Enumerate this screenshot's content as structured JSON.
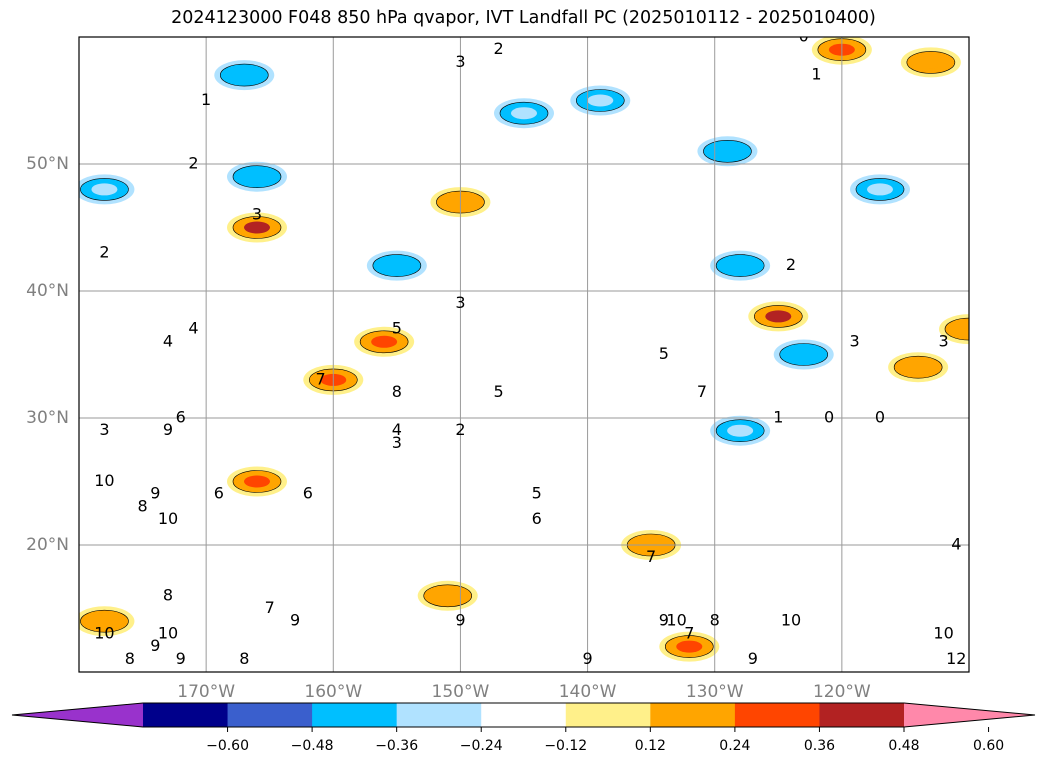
{
  "title": "2024123000 F048 850 hPa qvapor, IVT Landfall PC (2025010112 - 2025010400)",
  "chart_data": {
    "type": "contour-map",
    "title": "2024123000 F048 850 hPa qvapor, IVT Landfall PC (2025010112 - 2025010400)",
    "lon_range": [
      -180,
      -110
    ],
    "lat_range": [
      10,
      60
    ],
    "grid": true,
    "lat_ticks": [
      {
        "lat": 50,
        "label": "50°N"
      },
      {
        "lat": 40,
        "label": "40°N"
      },
      {
        "lat": 30,
        "label": "30°N"
      },
      {
        "lat": 20,
        "label": "20°N"
      }
    ],
    "lon_ticks": [
      {
        "lon": -170,
        "label": "170°W"
      },
      {
        "lon": -160,
        "label": "160°W"
      },
      {
        "lon": -150,
        "label": "150°W"
      },
      {
        "lon": -140,
        "label": "140°W"
      },
      {
        "lon": -130,
        "label": "130°W"
      },
      {
        "lon": -120,
        "label": "120°W"
      }
    ],
    "colorbar": {
      "orientation": "horizontal",
      "extend": "both",
      "levels": [
        -0.72,
        -0.6,
        -0.48,
        -0.36,
        -0.24,
        -0.12,
        0.12,
        0.24,
        0.36,
        0.48,
        0.6,
        0.72
      ],
      "colors": [
        "#9932cc",
        "#00008b",
        "#3a5fcd",
        "#00bfff",
        "#b0e2ff",
        "#ffffff",
        "#fff08a",
        "#ffa500",
        "#ff4500",
        "#b22222",
        "#ff88aa"
      ],
      "tick_labels": [
        "−0.60",
        "−0.48",
        "−0.36",
        "−0.24",
        "−0.12",
        "0.12",
        "0.24",
        "0.36",
        "0.48",
        "0.60"
      ]
    },
    "contour_labels": [
      {
        "text": "2",
        "lon": -147,
        "lat": 59
      },
      {
        "text": "3",
        "lon": -150,
        "lat": 58
      },
      {
        "text": "1",
        "lon": -170,
        "lat": 55
      },
      {
        "text": "2",
        "lon": -171,
        "lat": 50
      },
      {
        "text": "3",
        "lon": -166,
        "lat": 46
      },
      {
        "text": "2",
        "lon": -178,
        "lat": 43
      },
      {
        "text": "4",
        "lon": -173,
        "lat": 36
      },
      {
        "text": "3",
        "lon": -178,
        "lat": 29
      },
      {
        "text": "6",
        "lon": -172,
        "lat": 30
      },
      {
        "text": "9",
        "lon": -173,
        "lat": 29
      },
      {
        "text": "4",
        "lon": -171,
        "lat": 37
      },
      {
        "text": "7",
        "lon": -161,
        "lat": 33
      },
      {
        "text": "8",
        "lon": -155,
        "lat": 32
      },
      {
        "text": "5",
        "lon": -155,
        "lat": 37
      },
      {
        "text": "3",
        "lon": -150,
        "lat": 39
      },
      {
        "text": "4",
        "lon": -155,
        "lat": 29
      },
      {
        "text": "3",
        "lon": -155,
        "lat": 28
      },
      {
        "text": "2",
        "lon": -150,
        "lat": 29
      },
      {
        "text": "5",
        "lon": -147,
        "lat": 32
      },
      {
        "text": "5",
        "lon": -134,
        "lat": 35
      },
      {
        "text": "7",
        "lon": -131,
        "lat": 32
      },
      {
        "text": "10",
        "lon": -178,
        "lat": 25
      },
      {
        "text": "9",
        "lon": -174,
        "lat": 24
      },
      {
        "text": "6",
        "lon": -169,
        "lat": 24
      },
      {
        "text": "8",
        "lon": -175,
        "lat": 23
      },
      {
        "text": "10",
        "lon": -173,
        "lat": 22
      },
      {
        "text": "6",
        "lon": -162,
        "lat": 24
      },
      {
        "text": "5",
        "lon": -144,
        "lat": 24
      },
      {
        "text": "6",
        "lon": -144,
        "lat": 22
      },
      {
        "text": "7",
        "lon": -135,
        "lat": 19
      },
      {
        "text": "8",
        "lon": -173,
        "lat": 16
      },
      {
        "text": "9",
        "lon": -163,
        "lat": 14
      },
      {
        "text": "7",
        "lon": -165,
        "lat": 15
      },
      {
        "text": "9",
        "lon": -150,
        "lat": 14
      },
      {
        "text": "9",
        "lon": -134,
        "lat": 14
      },
      {
        "text": "10",
        "lon": -133,
        "lat": 14
      },
      {
        "text": "8",
        "lon": -130,
        "lat": 14
      },
      {
        "text": "7",
        "lon": -132,
        "lat": 13
      },
      {
        "text": "9",
        "lon": -127,
        "lat": 11
      },
      {
        "text": "10",
        "lon": -124,
        "lat": 14
      },
      {
        "text": "10",
        "lon": -112,
        "lat": 13
      },
      {
        "text": "12",
        "lon": -111,
        "lat": 11
      },
      {
        "text": "9",
        "lon": -140,
        "lat": 11
      },
      {
        "text": "9",
        "lon": -174,
        "lat": 12
      },
      {
        "text": "10",
        "lon": -178,
        "lat": 13
      },
      {
        "text": "8",
        "lon": -176,
        "lat": 11
      },
      {
        "text": "10",
        "lon": -173,
        "lat": 13
      },
      {
        "text": "9",
        "lon": -172,
        "lat": 11
      },
      {
        "text": "8",
        "lon": -167,
        "lat": 11
      },
      {
        "text": "2",
        "lon": -124,
        "lat": 42
      },
      {
        "text": "1",
        "lon": -125,
        "lat": 30
      },
      {
        "text": "0",
        "lon": -121,
        "lat": 30
      },
      {
        "text": "0",
        "lon": -117,
        "lat": 30
      },
      {
        "text": "3",
        "lon": -119,
        "lat": 36
      },
      {
        "text": "3",
        "lon": -112,
        "lat": 36
      },
      {
        "text": "1",
        "lon": -122,
        "lat": 57
      },
      {
        "text": "0",
        "lon": -123,
        "lat": 60
      },
      {
        "text": "4",
        "lon": -111,
        "lat": 20
      }
    ],
    "shaded_regions": [
      {
        "value": -0.36,
        "lon": -167,
        "lat": 57
      },
      {
        "value": -0.36,
        "lon": -166,
        "lat": 49
      },
      {
        "value": -0.24,
        "lon": -178,
        "lat": 48
      },
      {
        "value": -0.24,
        "lon": -145,
        "lat": 54
      },
      {
        "value": -0.24,
        "lon": -139,
        "lat": 55
      },
      {
        "value": -0.36,
        "lon": -155,
        "lat": 42
      },
      {
        "value": -0.36,
        "lon": -129,
        "lat": 51
      },
      {
        "value": -0.36,
        "lon": -128,
        "lat": 42
      },
      {
        "value": -0.36,
        "lon": -123,
        "lat": 35
      },
      {
        "value": -0.24,
        "lon": -117,
        "lat": 48
      },
      {
        "value": -0.24,
        "lon": -128,
        "lat": 29
      },
      {
        "value": 0.48,
        "lon": -166,
        "lat": 45
      },
      {
        "value": 0.24,
        "lon": -150,
        "lat": 47
      },
      {
        "value": 0.36,
        "lon": -156,
        "lat": 36
      },
      {
        "value": 0.36,
        "lon": -160,
        "lat": 33
      },
      {
        "value": 0.48,
        "lon": -125,
        "lat": 38
      },
      {
        "value": 0.36,
        "lon": -166,
        "lat": 25
      },
      {
        "value": 0.24,
        "lon": -178,
        "lat": 14
      },
      {
        "value": 0.24,
        "lon": -151,
        "lat": 16
      },
      {
        "value": 0.24,
        "lon": -135,
        "lat": 20
      },
      {
        "value": 0.36,
        "lon": -132,
        "lat": 12
      },
      {
        "value": 0.36,
        "lon": -120,
        "lat": 59
      },
      {
        "value": 0.24,
        "lon": -113,
        "lat": 58
      },
      {
        "value": 0.24,
        "lon": -110,
        "lat": 37
      },
      {
        "value": 0.24,
        "lon": -114,
        "lat": 34
      }
    ]
  }
}
